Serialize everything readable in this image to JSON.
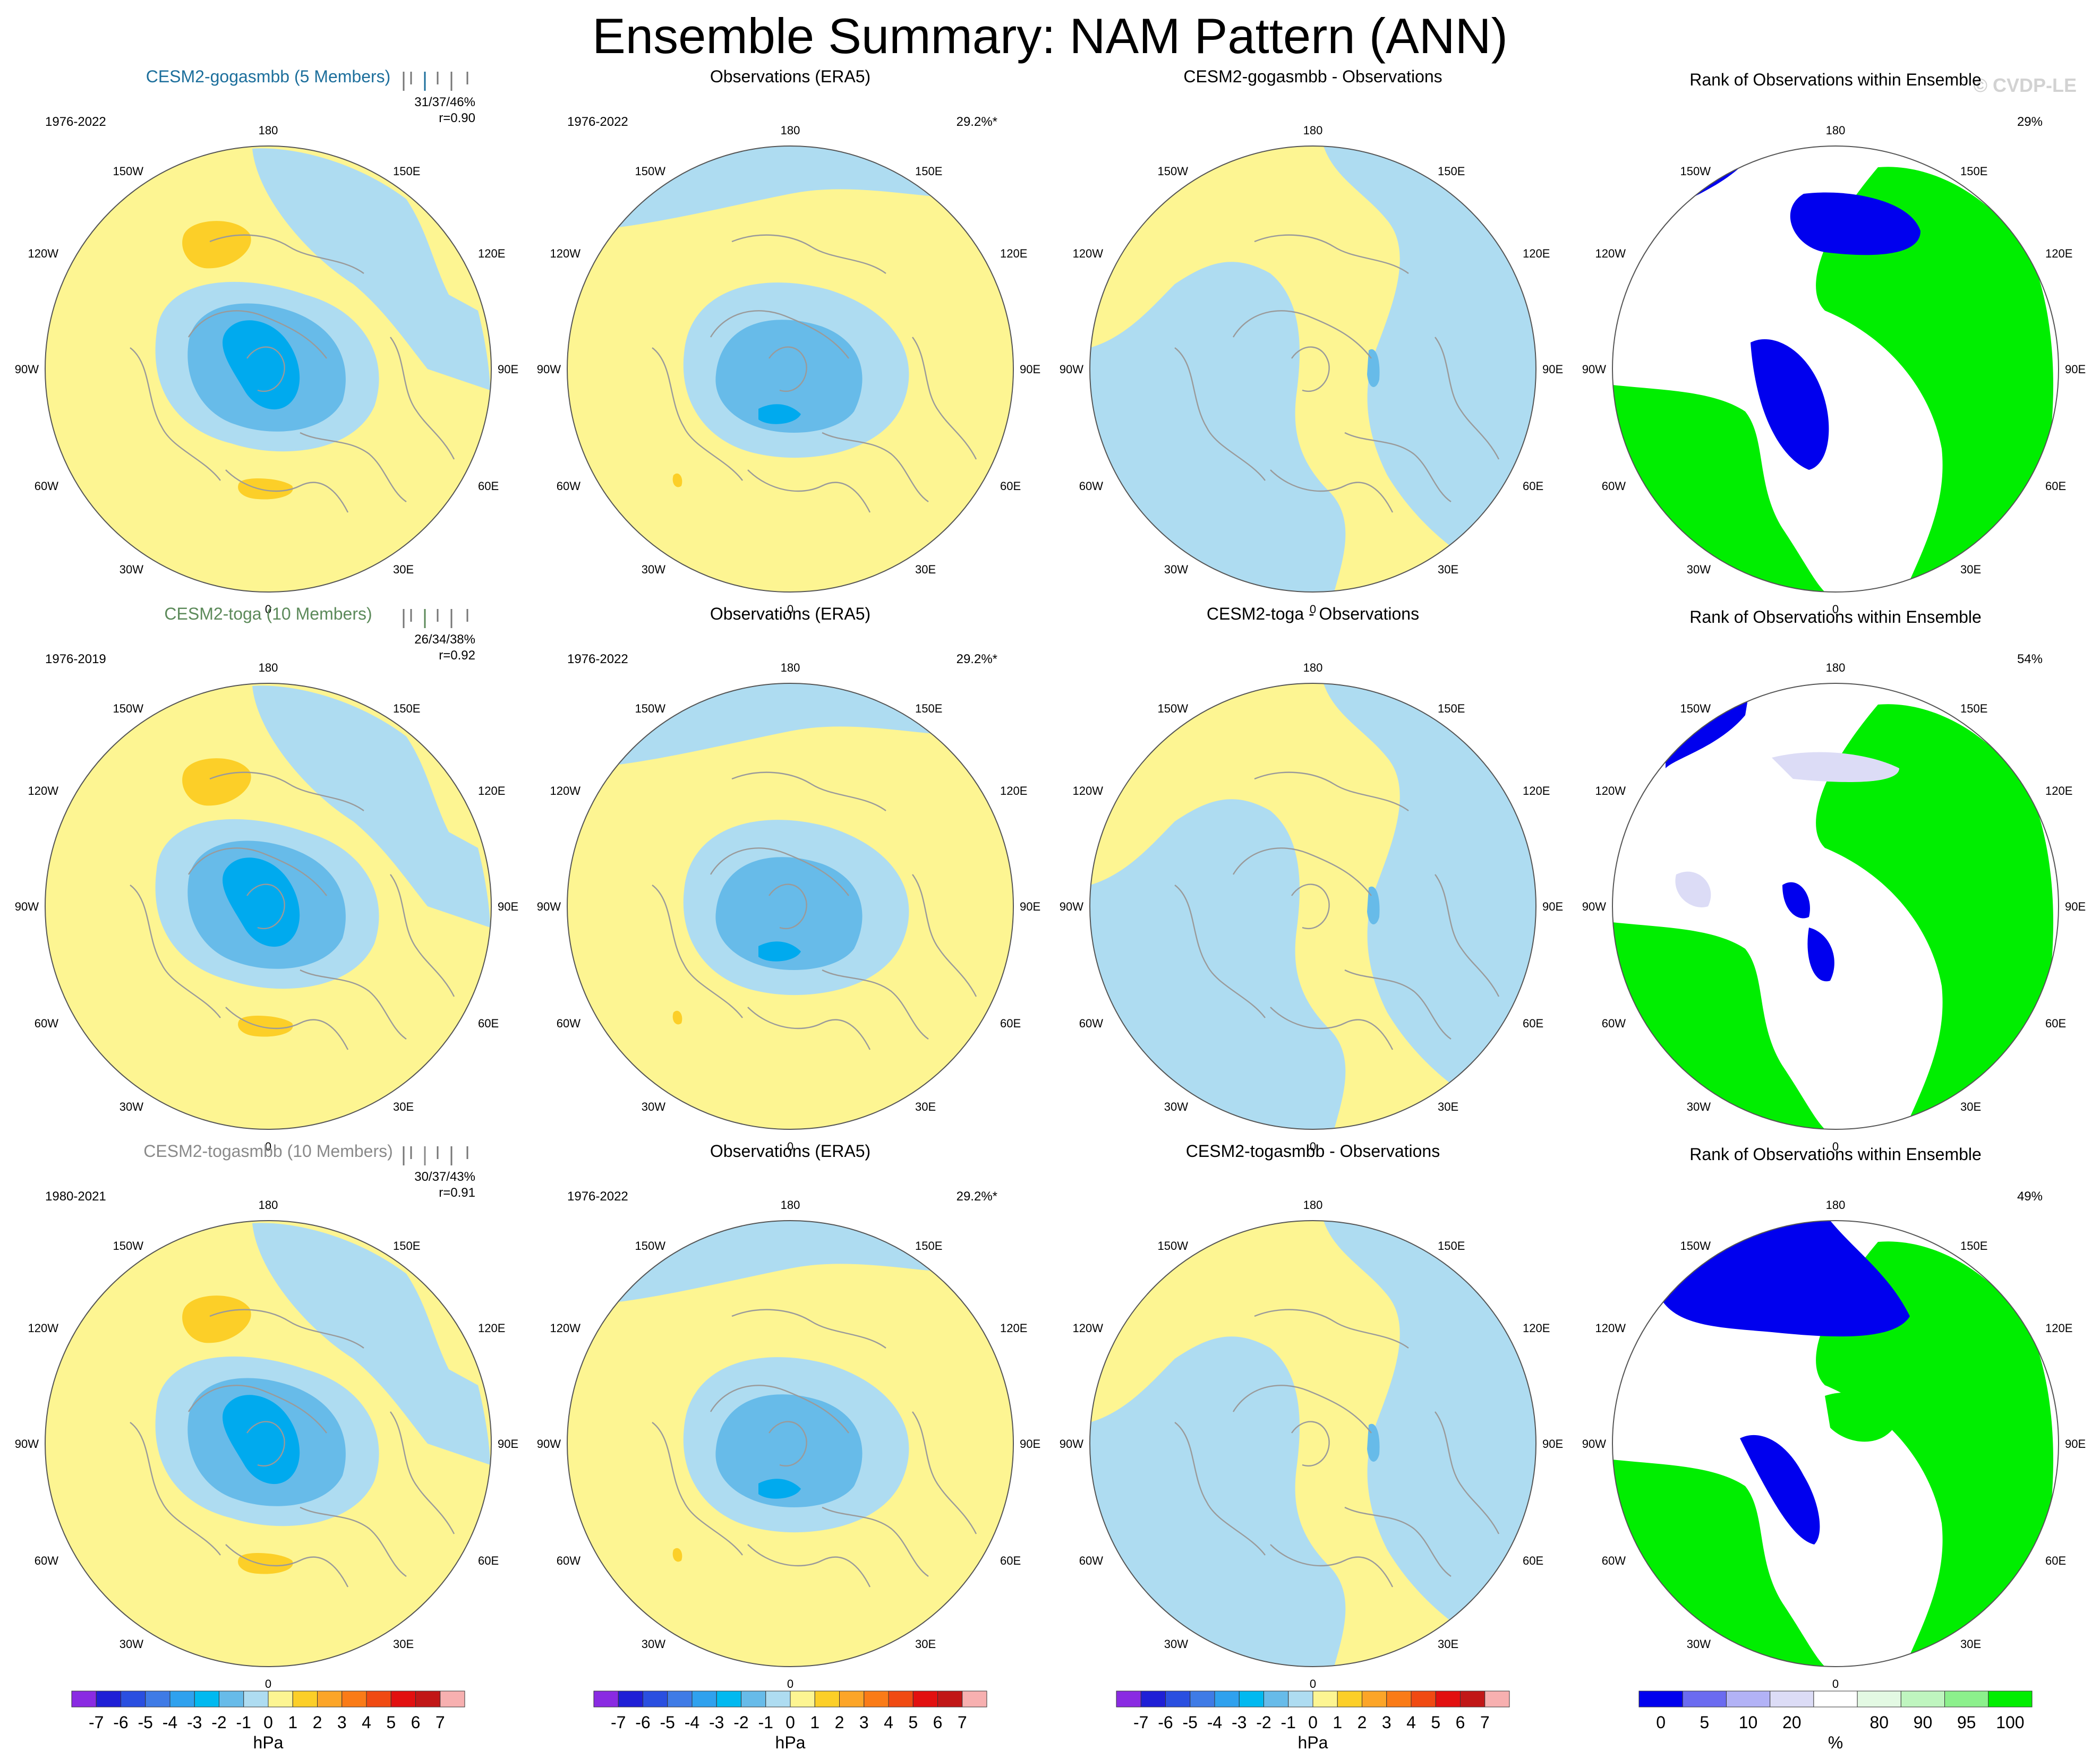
{
  "title": "Ensemble Summary: NAM Pattern (ANN)",
  "credit": "© CVDP-LE",
  "colors": {
    "yellow": "#fdf592",
    "light_blue": "#aedcf1",
    "mid_blue": "#67bbe9",
    "deep_blue": "#00aaee",
    "gold": "#fccf28",
    "rank_blue": "#0000ee",
    "rank_green": "#00ee00",
    "rank_pale": "#dcdcf6",
    "coast": "#9a9a9a"
  },
  "map_labels": {
    "top": "180",
    "bottom": "0",
    "tl": "150W",
    "tr": "150E",
    "ul": "120W",
    "ur": "120E",
    "ml": "90W",
    "mr": "90E",
    "ll": "60W",
    "lr": "60E",
    "bl": "30W",
    "br": "30E"
  },
  "chart_data": {
    "type": "heatmap",
    "projection": "north polar stereographic",
    "variable": "NAM Pattern (ANN)",
    "units": "hPa",
    "rows": [
      {
        "model": "CESM2-gogasmbb (5 Members)",
        "model_color": "#1d6f9c",
        "period_model": "1976-2022",
        "stats": "31/37/46%",
        "r": "r=0.90",
        "rank_pct": "29%",
        "obs_title": "Observations (ERA5)",
        "obs_period": "1976-2022",
        "obs_pct": "29.2%*",
        "diff_title": "CESM2-gogasmbb - Observations",
        "rank_title": "Rank of Observations within Ensemble"
      },
      {
        "model": "CESM2-toga (10 Members)",
        "model_color": "#5c8a5a",
        "period_model": "1976-2019",
        "stats": "26/34/38%",
        "r": "r=0.92",
        "rank_pct": "54%",
        "obs_title": "Observations (ERA5)",
        "obs_period": "1976-2022",
        "obs_pct": "29.2%*",
        "diff_title": "CESM2-toga - Observations",
        "rank_title": "Rank of Observations within Ensemble"
      },
      {
        "model": "CESM2-togasmbb (10 Members)",
        "model_color": "#8a8a8a",
        "period_model": "1980-2021",
        "stats": "30/37/43%",
        "r": "r=0.91",
        "rank_pct": "49%",
        "obs_title": "Observations (ERA5)",
        "obs_period": "1976-2022",
        "obs_pct": "29.2%*",
        "diff_title": "CESM2-togasmbb - Observations",
        "rank_title": "Rank of Observations within Ensemble"
      }
    ],
    "colorbar_hpa": {
      "label": "hPa",
      "ticks": [
        "-7",
        "-6",
        "-5",
        "-4",
        "-3",
        "-2",
        "-1",
        "0",
        "1",
        "2",
        "3",
        "4",
        "5",
        "6",
        "7"
      ],
      "colors": [
        "#8a2be2",
        "#1f1fd6",
        "#2a4fe0",
        "#3f7be6",
        "#2fa1ee",
        "#00b9f0",
        "#67bbe9",
        "#aedcf1",
        "#fdf592",
        "#fccf28",
        "#fca528",
        "#fa7b17",
        "#f04a12",
        "#e21010",
        "#c11717",
        "#f7b0b0"
      ]
    },
    "colorbar_pct": {
      "label": "%",
      "ticks": [
        "0",
        "5",
        "10",
        "20",
        "80",
        "90",
        "95",
        "100"
      ],
      "colors": [
        "#0000ee",
        "#6b6bf0",
        "#b2b2f6",
        "#dcdcf6",
        "#ffffff",
        "#e3f9e3",
        "#bff5bf",
        "#8cf08c",
        "#00ee00"
      ]
    }
  }
}
